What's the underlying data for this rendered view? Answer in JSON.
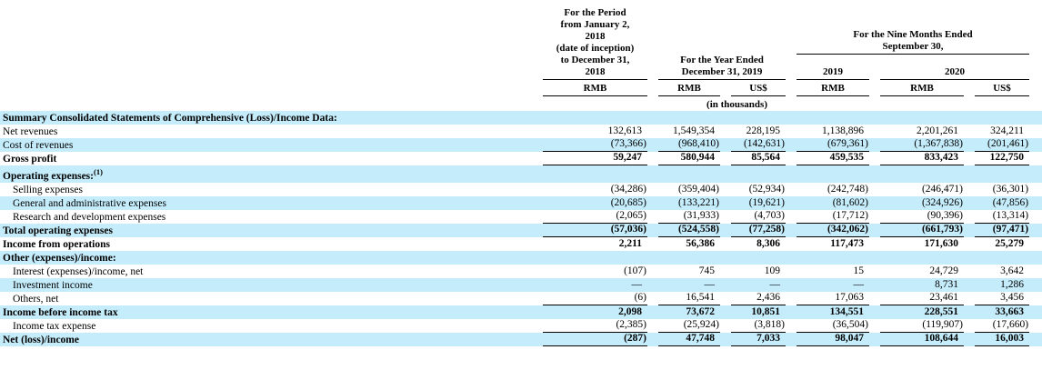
{
  "document": {
    "table": {
      "header": {
        "period_2018": "For the Period\nfrom January 2,\n2018\n(date of inception)\nto December 31,\n2018",
        "year_ended_2019": "For the Year Ended\nDecember 31, 2019",
        "nine_months_ended": "For the Nine Months Ended\nSeptember 30,",
        "year_2019": "2019",
        "year_2020": "2020",
        "currencies": [
          "RMB",
          "RMB",
          "US$",
          "RMB",
          "RMB",
          "US$"
        ],
        "units_note": "(in thousands)"
      },
      "colors": {
        "stripe": "#c5ecfb",
        "rule": "#000000"
      },
      "rows": [
        {
          "label": "Summary Consolidated Statements of Comprehensive (Loss)/Income Data:",
          "bold": true,
          "shaded": true,
          "values": [
            "",
            "",
            "",
            "",
            "",
            ""
          ]
        },
        {
          "label": "Net revenues",
          "values": [
            "132,613",
            "1,549,354",
            "228,195",
            "1,138,896",
            "2,201,261",
            "324,211"
          ]
        },
        {
          "label": "Cost of revenues",
          "shaded": true,
          "underline": true,
          "values": [
            "(73,366)",
            "(968,410)",
            "(142,631)",
            "(679,361)",
            "(1,367,838)",
            "(201,461)"
          ]
        },
        {
          "label": "Gross profit",
          "bold": true,
          "underline": true,
          "values": [
            "59,247",
            "580,944",
            "85,564",
            "459,535",
            "833,423",
            "122,750"
          ]
        },
        {
          "label": "Operating expenses:",
          "sup": "(1)",
          "bold": true,
          "shaded": true,
          "tall": true,
          "values": [
            "",
            "",
            "",
            "",
            "",
            ""
          ]
        },
        {
          "label": "Selling expenses",
          "indent": true,
          "values": [
            "(34,286)",
            "(359,404)",
            "(52,934)",
            "(242,748)",
            "(246,471)",
            "(36,301)"
          ]
        },
        {
          "label": "General and administrative expenses",
          "indent": true,
          "shaded": true,
          "values": [
            "(20,685)",
            "(133,221)",
            "(19,621)",
            "(81,602)",
            "(324,926)",
            "(47,856)"
          ]
        },
        {
          "label": "Research and development expenses",
          "indent": true,
          "underline": true,
          "values": [
            "(2,065)",
            "(31,933)",
            "(4,703)",
            "(17,712)",
            "(90,396)",
            "(13,314)"
          ]
        },
        {
          "label": "Total operating expenses",
          "bold": true,
          "shaded": true,
          "underline": true,
          "values": [
            "(57,036)",
            "(524,558)",
            "(77,258)",
            "(342,062)",
            "(661,793)",
            "(97,471)"
          ]
        },
        {
          "label": "Income from operations",
          "bold": true,
          "values": [
            "2,211",
            "56,386",
            "8,306",
            "117,473",
            "171,630",
            "25,279"
          ]
        },
        {
          "label": "Other (expenses)/income:",
          "bold": true,
          "shaded": true,
          "values": [
            "",
            "",
            "",
            "",
            "",
            ""
          ]
        },
        {
          "label": "Interest (expenses)/income, net",
          "indent": true,
          "values": [
            "(107)",
            "745",
            "109",
            "15",
            "24,729",
            "3,642"
          ]
        },
        {
          "label": "Investment income",
          "indent": true,
          "shaded": true,
          "values": [
            "—",
            "—",
            "—",
            "—",
            "8,731",
            "1,286"
          ]
        },
        {
          "label": "Others, net",
          "indent": true,
          "underline": true,
          "values": [
            "(6)",
            "16,541",
            "2,436",
            "17,063",
            "23,461",
            "3,456"
          ]
        },
        {
          "label": "Income before income tax",
          "bold": true,
          "shaded": true,
          "values": [
            "2,098",
            "73,672",
            "10,851",
            "134,551",
            "228,551",
            "33,663"
          ]
        },
        {
          "label": "Income tax expense",
          "indent": true,
          "underline": true,
          "values": [
            "(2,385)",
            "(25,924)",
            "(3,818)",
            "(36,504)",
            "(119,907)",
            "(17,660)"
          ]
        },
        {
          "label": "Net (loss)/income",
          "bold": true,
          "shaded": true,
          "underline": true,
          "values": [
            "(287)",
            "47,748",
            "7,033",
            "98,047",
            "108,644",
            "16,003"
          ]
        }
      ]
    }
  }
}
